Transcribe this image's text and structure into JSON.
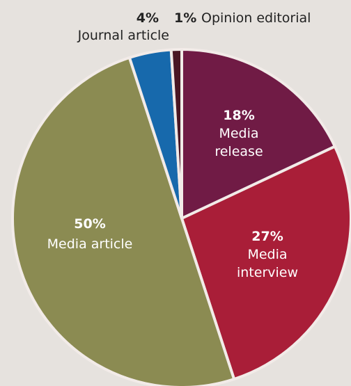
{
  "chart_data": {
    "type": "pie",
    "slices": [
      {
        "label": "Media release",
        "value": 18,
        "pct_label": "18%",
        "color": "#701b45"
      },
      {
        "label": "Media interview",
        "value": 27,
        "pct_label": "27%",
        "color": "#a91e38"
      },
      {
        "label": "Media article",
        "value": 50,
        "pct_label": "50%",
        "color": "#8b8b52"
      },
      {
        "label": "Journal article",
        "value": 4,
        "pct_label": "4%",
        "color": "#1769ac"
      },
      {
        "label": "Opinion editorial",
        "value": 1,
        "pct_label": "1%",
        "color": "#4a1624"
      }
    ],
    "start_angle_deg": 0,
    "direction": "clockwise",
    "slice_border_color": "#f2ebe8",
    "label_color_inside": "#ffffff",
    "label_color_outside": "#222222",
    "background": "#e6e2de"
  }
}
